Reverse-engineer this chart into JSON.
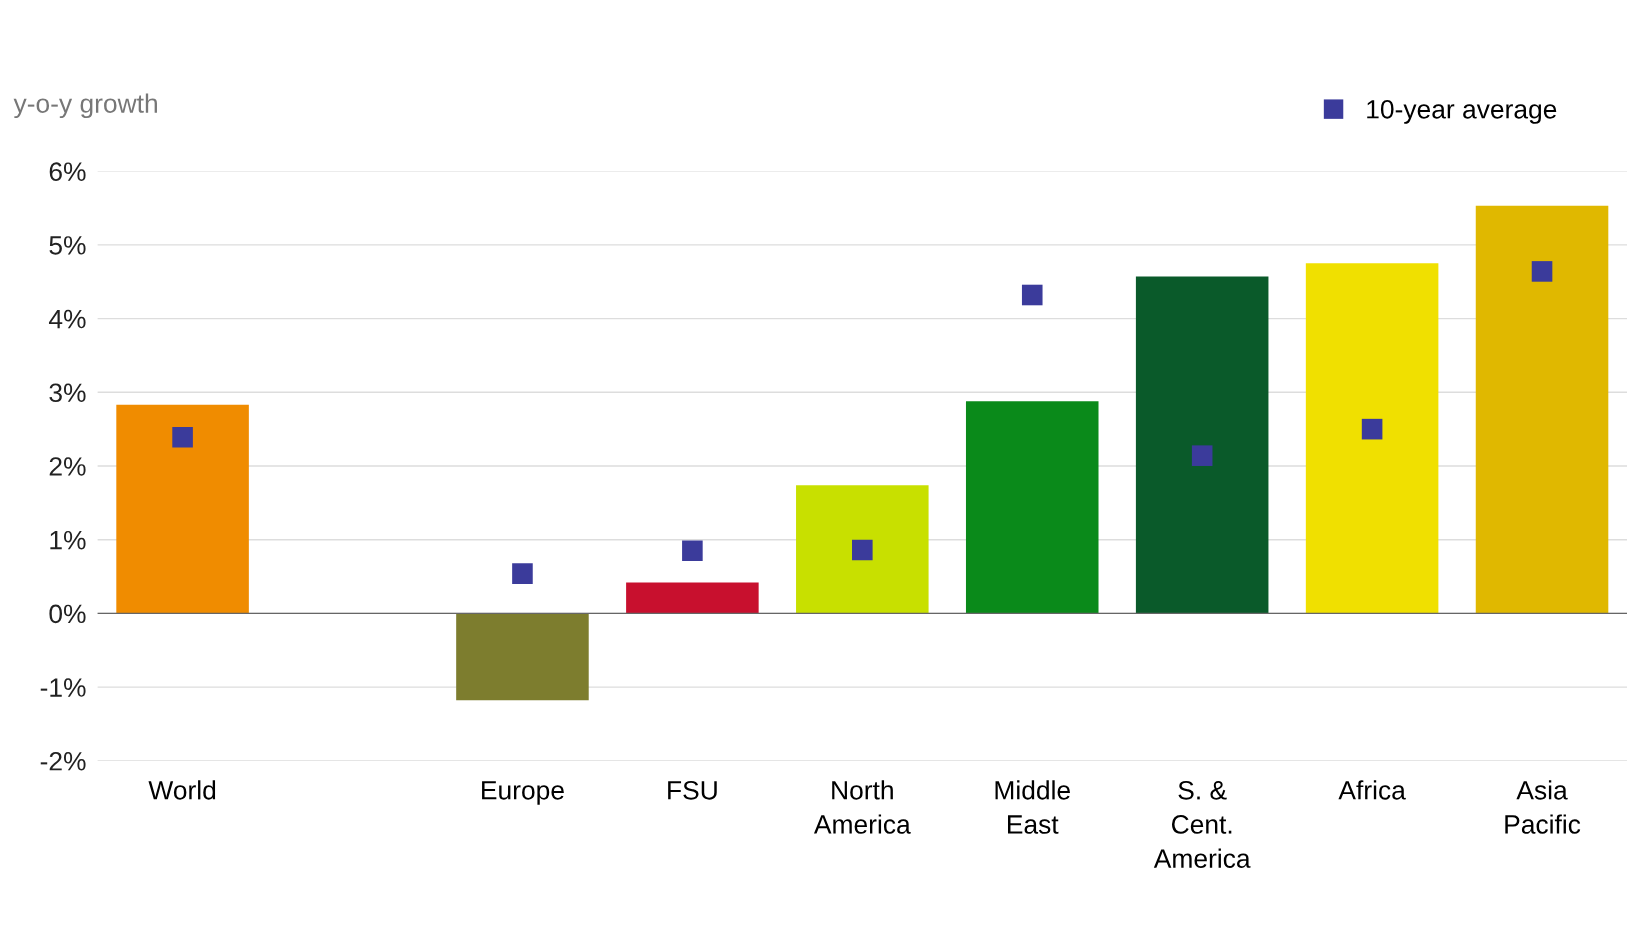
{
  "chart_data": {
    "type": "bar",
    "ylabel": "y-o-y growth",
    "categories": [
      "World",
      null,
      "Europe",
      "FSU",
      "North\nAmerica",
      "Middle\nEast",
      "S. &\nCent.\nAmerica",
      "Africa",
      "Asia\nPacific"
    ],
    "series": [
      {
        "colors": [
          "#f08c00",
          null,
          "#7d7d2e",
          "#c8102e",
          "#c8e000",
          "#0a8a1a",
          "#0a5a2a",
          "#f0e000",
          "#e0b800"
        ],
        "values": [
          2.83,
          null,
          -1.18,
          0.42,
          1.74,
          2.88,
          4.57,
          4.75,
          5.53
        ]
      },
      {
        "type": "scatter",
        "name": "10-year average",
        "color": "#3b3b9b",
        "marker": "square",
        "values": [
          2.39,
          null,
          0.54,
          0.85,
          0.86,
          4.32,
          2.14,
          2.5,
          4.64
        ]
      }
    ],
    "ylim": [
      -2,
      6
    ],
    "yticks": [
      {
        "value": -2,
        "label": "-2%"
      },
      {
        "value": -1,
        "label": "-1%"
      },
      {
        "value": 0,
        "label": "0%"
      },
      {
        "value": 1,
        "label": "1%"
      },
      {
        "value": 2,
        "label": "2%"
      },
      {
        "value": 3,
        "label": "3%"
      },
      {
        "value": 4,
        "label": "4%"
      },
      {
        "value": 5,
        "label": "5%"
      },
      {
        "value": 6,
        "label": "6%"
      }
    ],
    "grid": "y",
    "legend": "top right"
  }
}
